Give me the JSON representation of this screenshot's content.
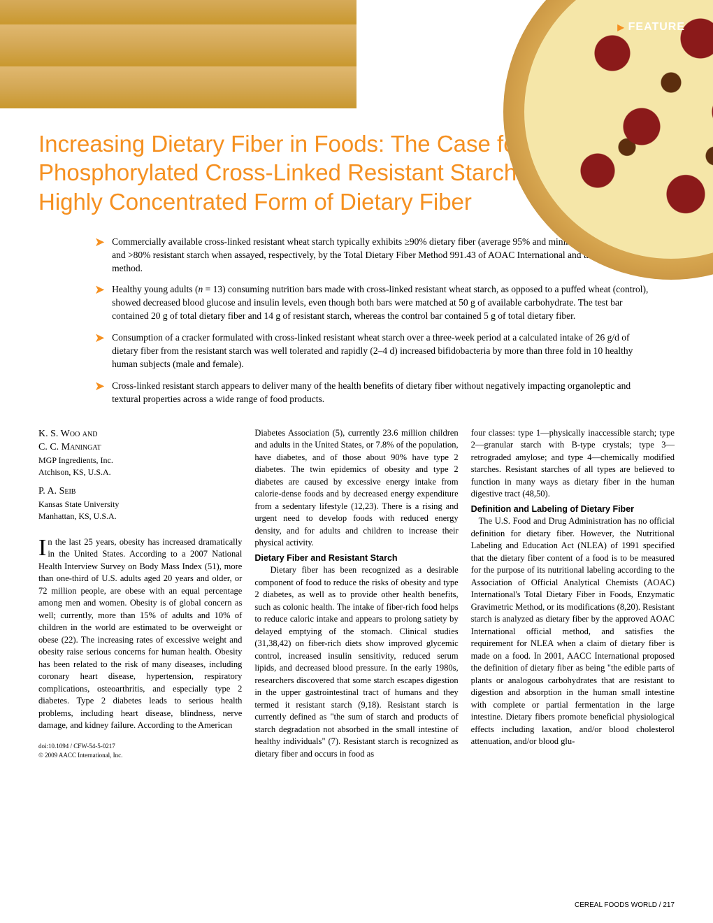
{
  "feature_label": "FEATURE",
  "title": "Increasing Dietary Fiber in Foods: The Case for Phosphorylated Cross-Linked Resistant Starch, A Highly Concentrated Form of Dietary Fiber",
  "bullets": [
    "Commercially available cross-linked resistant wheat starch typically exhibits ≥90% dietary fiber (average 95% and minimum 85%, dry basis) and >80% resistant starch when assayed, respectively, by the Total Dietary Fiber Method 991.43 of AOAC International and the Englyst method.",
    "Healthy young adults (n = 13) consuming nutrition bars made with cross-linked resistant wheat starch, as opposed to a puffed wheat (control), showed decreased blood glucose and insulin levels, even though both bars were matched at 50 g of available carbohydrate. The test bar contained 20 g of total dietary fiber and 14 g of resistant starch, whereas the control bar contained 5 g of total dietary fiber.",
    "Consumption of a cracker formulated with cross-linked resistant wheat starch over a three-week period at a calculated intake of 26 g/d of dietary fiber from the resistant starch was well tolerated and rapidly (2–4 d) increased bifidobacteria by more than three fold in 10 healthy human subjects (male and female).",
    "Cross-linked resistant starch appears to deliver many of the health benefits of dietary fiber without negatively impacting organoleptic and textural properties across a wide range of food products."
  ],
  "authors": [
    {
      "name": "K. S. Woo and",
      "affil": ""
    },
    {
      "name": "C. C. Maningat",
      "affil": "MGP Ingredients, Inc.\nAtchison, KS, U.S.A."
    },
    {
      "name": "P. A. Seib",
      "affil": "Kansas State University\nManhattan, KS, U.S.A."
    }
  ],
  "col1_intro_first": "I",
  "col1_intro": "n the last 25 years, obesity has increased dramatically in the United States. According to a 2007 National Health Interview Survey on Body Mass Index (51), more than one-third of U.S. adults aged 20 years and older, or 72 million people, are obese with an equal percentage among men and women. Obesity is of global concern as well; currently, more than 15% of adults and 10% of children in the world are estimated to be overweight or obese (22). The increasing rates of excessive weight and obesity raise serious concerns for human health. Obesity has been related to the risk of many diseases, including coronary heart disease, hypertension, respiratory complications, osteoarthritis, and especially type 2 diabetes. Type 2 diabetes leads to serious health problems, including heart disease, blindness, nerve damage, and kidney failure. According to the American",
  "col2_top": "Diabetes Association (5), currently 23.6 million children and adults in the United States, or 7.8% of the population, have diabetes, and of those about 90% have type 2 diabetes. The twin epidemics of obesity and type 2 diabetes are caused by excessive energy intake from calorie-dense foods and by decreased energy expenditure from a sedentary lifestyle (12,23). There is a rising and urgent need to develop foods with reduced energy density, and for adults and children to increase their physical activity.",
  "col2_heading": "Dietary Fiber and Resistant Starch",
  "col2_body": "Dietary fiber has been recognized as a desirable component of food to reduce the risks of obesity and type 2 diabetes, as well as to provide other health benefits, such as colonic health. The intake of fiber-rich food helps to reduce caloric intake and appears to prolong satiety by delayed emptying of the stomach. Clinical studies (31,38,42) on fiber-rich diets show improved glycemic control, increased insulin sensitivity, reduced serum lipids, and decreased blood pressure. In the early 1980s, researchers discovered that some starch escapes digestion in the upper gastrointestinal tract of humans and they termed it resistant starch (9,18). Resistant starch is currently defined as \"the sum of starch and products of starch degradation not absorbed in the small intestine of healthy individuals\" (7). Resistant starch is recognized as dietary fiber and occurs in food as",
  "col3_top": "four classes: type 1—physically inaccessible starch; type 2—granular starch with B-type crystals; type 3—retrograded amylose; and type 4—chemically modified starches. Resistant starches of all types are believed to function in many ways as dietary fiber in the human digestive tract (48,50).",
  "col3_heading": "Definition and Labeling of Dietary Fiber",
  "col3_body": "The U.S. Food and Drug Administration has no official definition for dietary fiber. However, the Nutritional Labeling and Education Act (NLEA) of 1991 specified that the dietary fiber content of a food is to be measured for the purpose of its nutritional labeling according to the Association of Official Analytical Chemists (AOAC) International's Total Dietary Fiber in Foods, Enzymatic Gravimetric Method, or its modifications (8,20). Resistant starch is analyzed as dietary fiber by the approved AOAC International official method, and satisfies the requirement for NLEA when a claim of dietary fiber is made on a food. In 2001, AACC International proposed the definition of dietary fiber as being \"the edible parts of plants or analogous carbohydrates that are resistant to digestion and absorption in the human small intestine with complete or partial fermentation in the large intestine. Dietary fibers promote beneficial physiological effects including laxation, and/or blood cholesterol attenuation, and/or blood glu-",
  "doi": "doi:10.1094 / CFW-54-5-0217",
  "copyright": "© 2009 AACC International, Inc.",
  "footer": "CEREAL FOODS WORLD / 217"
}
